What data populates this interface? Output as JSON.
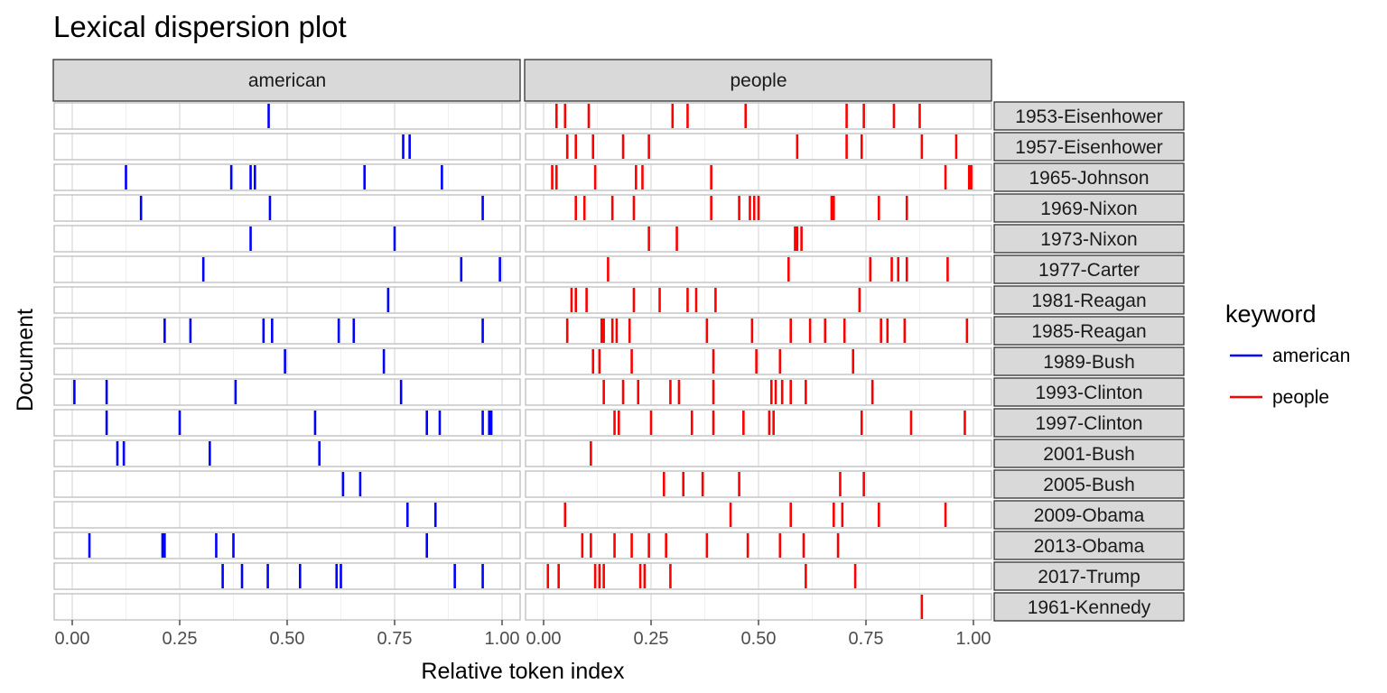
{
  "chart_data": {
    "type": "scatter",
    "title": "Lexical dispersion plot",
    "xlabel": "Relative token index",
    "ylabel": "Document",
    "xlim": [
      0,
      1
    ],
    "x_ticks": [
      "0.00",
      "0.25",
      "0.50",
      "0.75",
      "1.00"
    ],
    "facets": [
      "american",
      "people"
    ],
    "documents": [
      "1953-Eisenhower",
      "1957-Eisenhower",
      "1965-Johnson",
      "1969-Nixon",
      "1973-Nixon",
      "1977-Carter",
      "1981-Reagan",
      "1985-Reagan",
      "1989-Bush",
      "1993-Clinton",
      "1997-Clinton",
      "2001-Bush",
      "2005-Bush",
      "2009-Obama",
      "2013-Obama",
      "2017-Trump",
      "1961-Kennedy"
    ],
    "legend": {
      "title": "keyword",
      "position": "right",
      "entries": [
        {
          "label": "american",
          "color": "#0000ff"
        },
        {
          "label": "people",
          "color": "#ff0000"
        }
      ]
    },
    "grid": true,
    "series": [
      {
        "name": "american",
        "color": "#0000ff",
        "rows": [
          [
            0.457
          ],
          [
            0.77,
            0.785
          ],
          [
            0.125,
            0.37,
            0.415,
            0.425,
            0.68,
            0.86
          ],
          [
            0.16,
            0.46,
            0.955
          ],
          [
            0.415,
            0.75
          ],
          [
            0.305,
            0.905,
            0.995
          ],
          [
            0.735
          ],
          [
            0.215,
            0.275,
            0.445,
            0.465,
            0.62,
            0.655,
            0.955
          ],
          [
            0.495,
            0.725
          ],
          [
            0.005,
            0.08,
            0.38,
            0.765
          ],
          [
            0.08,
            0.25,
            0.565,
            0.825,
            0.855,
            0.955,
            0.97,
            0.975
          ],
          [
            0.105,
            0.12,
            0.32,
            0.575
          ],
          [
            0.63,
            0.67
          ],
          [
            0.78,
            0.845
          ],
          [
            0.04,
            0.21,
            0.215,
            0.335,
            0.375,
            0.825
          ],
          [
            0.35,
            0.395,
            0.455,
            0.53,
            0.615,
            0.625,
            0.89,
            0.955
          ],
          []
        ]
      },
      {
        "name": "people",
        "color": "#ff0000",
        "rows": [
          [
            0.03,
            0.05,
            0.105,
            0.3,
            0.335,
            0.47,
            0.705,
            0.745,
            0.815,
            0.875
          ],
          [
            0.055,
            0.075,
            0.115,
            0.185,
            0.245,
            0.59,
            0.705,
            0.74,
            0.88,
            0.96
          ],
          [
            0.02,
            0.03,
            0.12,
            0.215,
            0.23,
            0.39,
            0.935,
            0.99,
            0.995
          ],
          [
            0.075,
            0.095,
            0.16,
            0.21,
            0.39,
            0.455,
            0.48,
            0.49,
            0.5,
            0.67,
            0.675,
            0.78,
            0.845
          ],
          [
            0.245,
            0.31,
            0.585,
            0.59,
            0.6
          ],
          [
            0.15,
            0.57,
            0.76,
            0.81,
            0.825,
            0.845,
            0.94
          ],
          [
            0.065,
            0.075,
            0.1,
            0.21,
            0.27,
            0.335,
            0.355,
            0.4,
            0.735
          ],
          [
            0.055,
            0.135,
            0.14,
            0.16,
            0.17,
            0.2,
            0.38,
            0.485,
            0.575,
            0.62,
            0.655,
            0.7,
            0.785,
            0.8,
            0.84,
            0.985
          ],
          [
            0.115,
            0.13,
            0.205,
            0.395,
            0.495,
            0.55,
            0.72
          ],
          [
            0.14,
            0.185,
            0.22,
            0.295,
            0.315,
            0.395,
            0.53,
            0.54,
            0.555,
            0.575,
            0.61,
            0.765
          ],
          [
            0.165,
            0.175,
            0.25,
            0.345,
            0.395,
            0.465,
            0.525,
            0.535,
            0.74,
            0.855,
            0.98
          ],
          [
            0.11
          ],
          [
            0.28,
            0.325,
            0.37,
            0.455,
            0.69,
            0.745
          ],
          [
            0.05,
            0.435,
            0.575,
            0.675,
            0.695,
            0.78,
            0.935
          ],
          [
            0.09,
            0.11,
            0.165,
            0.205,
            0.245,
            0.285,
            0.38,
            0.475,
            0.55,
            0.605,
            0.685
          ],
          [
            0.01,
            0.035,
            0.12,
            0.13,
            0.14,
            0.225,
            0.235,
            0.295,
            0.61,
            0.725
          ],
          [
            0.88
          ]
        ]
      }
    ]
  }
}
